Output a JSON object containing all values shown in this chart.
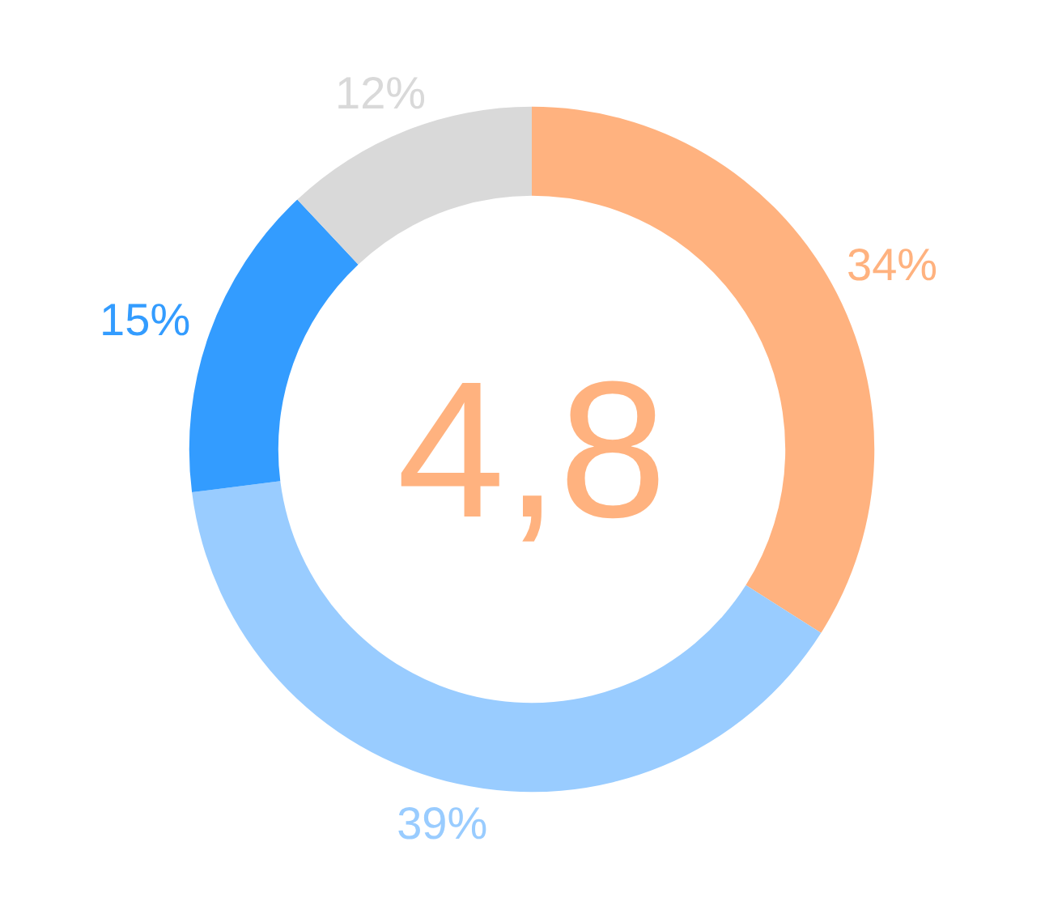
{
  "chart_data": {
    "type": "donut",
    "categories": [
      null,
      null,
      null,
      null
    ],
    "values": [
      34,
      39,
      15,
      12
    ],
    "colors": [
      "#ffb27f",
      "#99ccff",
      "#339cff",
      "#d9d9d9"
    ],
    "value_labels": [
      "34%",
      "39%",
      "15%",
      "12%"
    ],
    "annotations": [
      "4,8"
    ]
  }
}
